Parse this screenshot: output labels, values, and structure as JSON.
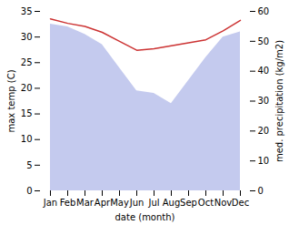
{
  "chart_data": {
    "type": "area",
    "xlabel": "date (month)",
    "ylabel": "max temp (C)",
    "y2label": "med. precipitation (kg/m2)",
    "categories": [
      "Jan",
      "Feb",
      "Mar",
      "Apr",
      "May",
      "Jun",
      "Jul",
      "Aug",
      "Sep",
      "Oct",
      "Nov",
      "Dec"
    ],
    "series": [
      {
        "type": "area",
        "color": "#b0b8e8",
        "values": [
          32.5,
          32.0,
          30.5,
          28.5,
          24.0,
          19.5,
          19.0,
          17.0,
          21.5,
          26.0,
          30.0,
          31.0
        ]
      },
      {
        "type": "line",
        "axis": "y2",
        "color": "#cc3333",
        "values": [
          57.5,
          56.0,
          55.0,
          53.0,
          50.0,
          47.0,
          47.5,
          48.5,
          49.5,
          50.5,
          53.5,
          57.0
        ]
      }
    ],
    "ylim": [
      0,
      35
    ],
    "yticks": [
      0,
      5,
      10,
      15,
      20,
      25,
      30,
      35
    ],
    "y2lim": [
      0,
      60
    ],
    "y2ticks": [
      0,
      10,
      20,
      30,
      40,
      50,
      60
    ]
  }
}
